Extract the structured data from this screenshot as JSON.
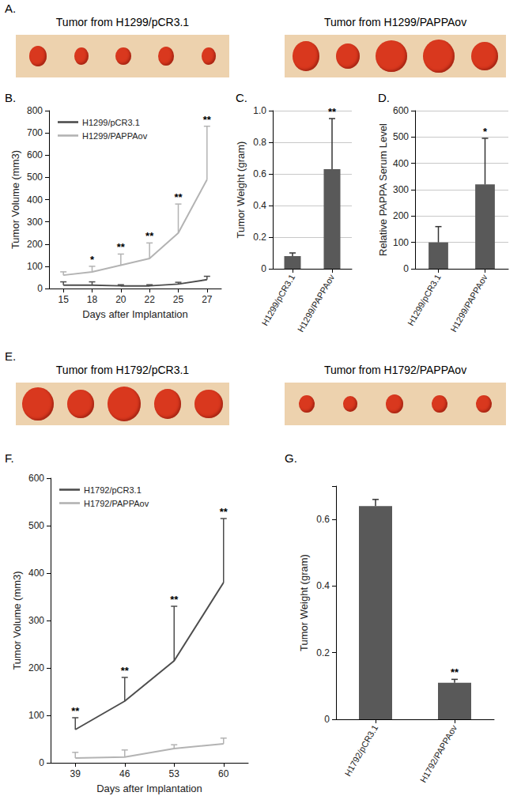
{
  "photos": [
    {
      "panel": "A.",
      "captions": [
        "Tumor from H1299/pCR3.1",
        "Tumor from H1299/PAPPAov"
      ]
    },
    {
      "panel": "E.",
      "captions": [
        "Tumor from H1792/pCR3.1",
        "Tumor from H1792/PAPPAov"
      ]
    }
  ],
  "chart_data": [
    {
      "panel": "B.",
      "type": "line",
      "x_label": "Days after Implantation",
      "y_label": "Tumor Volume (mm3)",
      "categories": [
        "15",
        "18",
        "20",
        "22",
        "25",
        "27"
      ],
      "series": [
        {
          "name": "H1299/pCR3.1",
          "color": "#4d4d4d",
          "values": [
            15,
            15,
            12,
            12,
            20,
            40
          ],
          "errors": [
            15,
            15,
            5,
            5,
            8,
            15
          ]
        },
        {
          "name": "H1299/PAPPAov",
          "color": "#b3b3b3",
          "values": [
            60,
            75,
            105,
            135,
            250,
            490
          ],
          "errors": [
            15,
            25,
            50,
            70,
            130,
            240
          ],
          "significance": [
            null,
            "*",
            "**",
            "**",
            "**",
            "**"
          ]
        }
      ],
      "ylim": [
        0,
        800
      ],
      "yticks": [
        0,
        100,
        200,
        300,
        400,
        500,
        600,
        700,
        800
      ],
      "grid": false,
      "legend": "upper left"
    },
    {
      "panel": "C.",
      "type": "bar",
      "y_label": "Tumor Weight (gram)",
      "categories": [
        "H1299/pCR3.1",
        "H1299/PAPPAov"
      ],
      "values": [
        0.08,
        0.63
      ],
      "errors": [
        0.02,
        0.32
      ],
      "significance": [
        null,
        "**"
      ],
      "color": "#595959",
      "ylim": [
        0,
        1
      ],
      "yticks": [
        0,
        0.2,
        0.4,
        0.6,
        0.8,
        {
          "value": 1,
          "label": "1.0"
        }
      ],
      "grid": true
    },
    {
      "panel": "D.",
      "type": "bar",
      "y_label": "Relative PAPPA Serum Level",
      "categories": [
        "H1299/pCR3.1",
        "H1299/PAPPAov"
      ],
      "values": [
        100,
        320
      ],
      "errors": [
        60,
        175
      ],
      "significance": [
        null,
        "*"
      ],
      "color": "#595959",
      "ylim": [
        0,
        600
      ],
      "yticks": [
        0,
        100,
        200,
        300,
        400,
        500,
        600
      ],
      "grid": true
    },
    {
      "panel": "F.",
      "type": "line",
      "x_label": "Days after Implantation",
      "y_label": "Tumor Volume (mm3)",
      "categories": [
        "39",
        "46",
        "53",
        "60"
      ],
      "series": [
        {
          "name": "H1792/pCR3.1",
          "color": "#4d4d4d",
          "values": [
            70,
            130,
            215,
            380
          ],
          "errors": [
            25,
            50,
            115,
            135
          ],
          "significance": [
            "**",
            "**",
            "**",
            "**"
          ]
        },
        {
          "name": "H1792/PAPPAov",
          "color": "#b3b3b3",
          "values": [
            10,
            12,
            30,
            40
          ],
          "errors": [
            12,
            15,
            8,
            12
          ]
        }
      ],
      "ylim": [
        0,
        600
      ],
      "yticks": [
        0,
        100,
        200,
        300,
        400,
        500,
        600
      ],
      "grid": false,
      "legend": "upper left"
    },
    {
      "panel": "G.",
      "type": "bar",
      "y_label": "Tumor Weight (gram)",
      "categories": [
        "H1792/pCR3.1",
        "H1792/PAPPAov"
      ],
      "values": [
        0.64,
        0.11
      ],
      "errors": [
        0.02,
        0.01
      ],
      "significance": [
        null,
        "**"
      ],
      "color": "#595959",
      "ylim": [
        0,
        0.7
      ],
      "yticks": [
        0,
        0.2,
        0.4,
        0.6
      ],
      "grid": false
    }
  ]
}
